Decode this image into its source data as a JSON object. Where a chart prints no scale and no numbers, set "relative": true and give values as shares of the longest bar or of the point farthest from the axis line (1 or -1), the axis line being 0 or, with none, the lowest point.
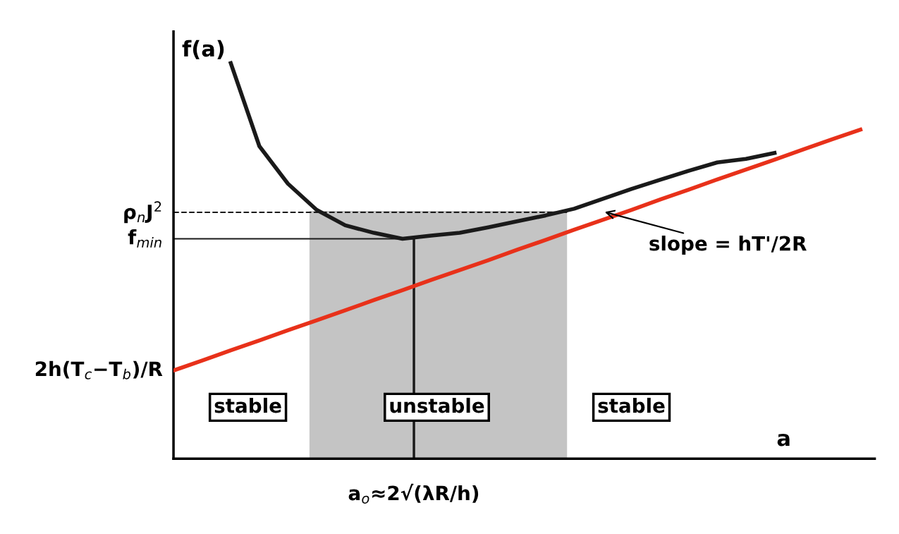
{
  "chart_data": {
    "type": "line",
    "relative": true,
    "xlabel": "a",
    "ylabel": "f(a)",
    "categories": [
      null,
      null,
      null,
      null,
      null,
      null,
      null,
      null,
      null,
      null,
      null,
      null,
      null,
      null,
      null,
      null,
      null,
      null,
      null,
      null,
      null,
      null,
      null,
      null,
      null
    ],
    "series": [
      {
        "color": "#1a1a1a",
        "values": [
          null,
          null,
          1.0,
          0.79,
          0.695,
          0.629,
          0.59,
          0.571,
          0.556,
          0.564,
          0.571,
          0.585,
          0.6,
          0.615,
          0.632,
          0.657,
          0.682,
          0.705,
          0.728,
          0.749,
          0.758,
          0.773,
          null,
          null,
          null
        ]
      },
      {
        "color": "#e8311a",
        "values": [
          0.223,
          0.248,
          0.274,
          0.299,
          0.325,
          0.35,
          0.375,
          0.401,
          0.426,
          0.452,
          0.477,
          0.502,
          0.528,
          0.553,
          0.579,
          0.604,
          0.629,
          0.655,
          0.68,
          0.706,
          0.731,
          0.756,
          0.782,
          0.807,
          0.832
        ]
      }
    ],
    "ref_lines": [
      {
        "axis": "y",
        "value": 0.623,
        "label": "ρ$_{n}$J$^{2}$",
        "line_style": "dashed",
        "color": "#1a1a1a"
      },
      {
        "axis": "y",
        "value": 0.556,
        "label": "f$_{min}$",
        "line_style": "solid",
        "color": "#1a1a1a"
      }
    ],
    "annotations": [
      "2h(T$_{c}$−T$_{b}$)/R",
      "stable",
      "unstable",
      "stable",
      "slope = hT'/2R",
      "a$_{o}$≈2√(λR/h)"
    ],
    "marker": "none",
    "line_style": "solid"
  }
}
